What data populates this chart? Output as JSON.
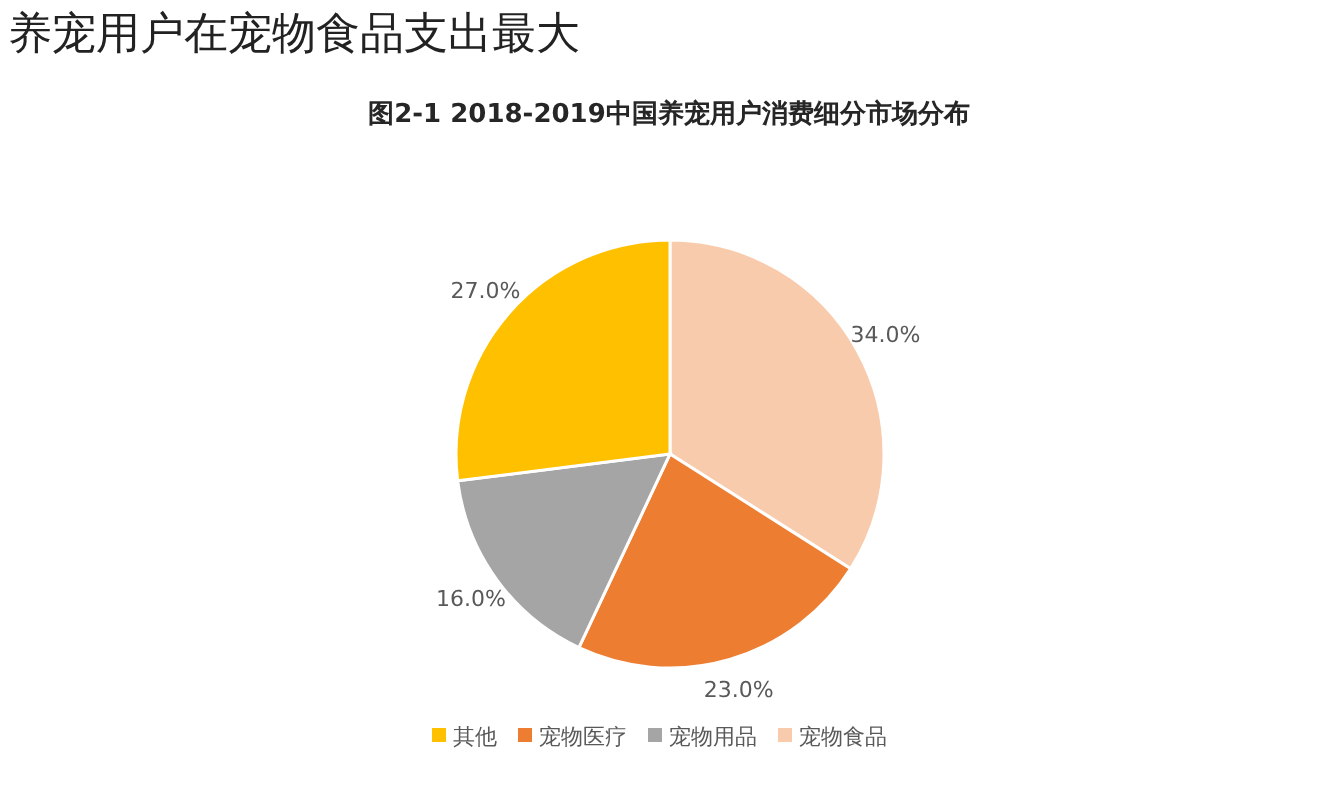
{
  "chart_data": {
    "type": "pie",
    "title": "养宠用户在宠物食品支出最大",
    "subtitle": "图2-1 2018-2019中国养宠用户消费细分市场分布",
    "categories": [
      "宠物食品",
      "宠物医疗",
      "宠物用品",
      "其他"
    ],
    "values": [
      34,
      23,
      16,
      27
    ],
    "colors": [
      "#f8cbad",
      "#ed7d31",
      "#a5a5a5",
      "#ffc000"
    ],
    "value_labels": [
      "34.0%",
      "23.0%",
      "16.0%",
      "27.0%"
    ],
    "legend": "bottom"
  }
}
